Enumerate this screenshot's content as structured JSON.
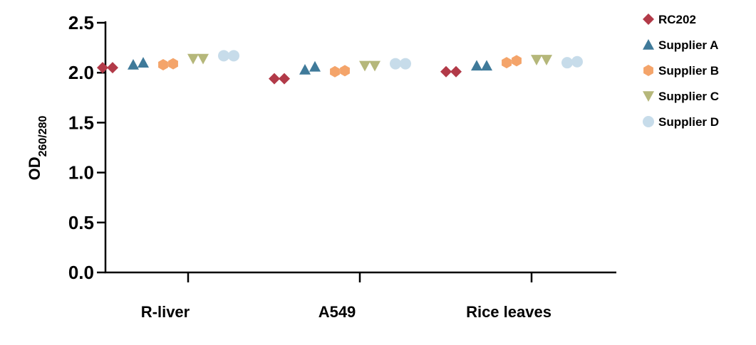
{
  "chart_data": {
    "type": "scatter",
    "ylabel": "OD",
    "ylabel_subscript": "260/280",
    "ylim": [
      0,
      2.5
    ],
    "yticks": [
      "0.0",
      "0.5",
      "1.0",
      "1.5",
      "2.0",
      "2.5"
    ],
    "ytick_values": [
      0,
      0.5,
      1.0,
      1.5,
      2.0,
      2.5
    ],
    "categories": [
      "R-liver",
      "A549",
      "Rice leaves"
    ],
    "legend_position": "right",
    "series": [
      {
        "name": "RC202",
        "marker": "diamond",
        "color": "#b23a48",
        "values": [
          [
            2.05,
            2.05
          ],
          [
            1.94,
            1.94
          ],
          [
            2.01,
            2.01
          ]
        ]
      },
      {
        "name": "Supplier A",
        "marker": "triangle-up",
        "color": "#3f7a9a",
        "values": [
          [
            2.08,
            2.1
          ],
          [
            2.03,
            2.06
          ],
          [
            2.07,
            2.07
          ]
        ]
      },
      {
        "name": "Supplier B",
        "marker": "hexagon",
        "color": "#f4a46a",
        "values": [
          [
            2.08,
            2.09
          ],
          [
            2.01,
            2.02
          ],
          [
            2.1,
            2.12
          ]
        ]
      },
      {
        "name": "Supplier C",
        "marker": "triangle-down",
        "color": "#b5b77a",
        "values": [
          [
            2.14,
            2.14
          ],
          [
            2.07,
            2.07
          ],
          [
            2.13,
            2.13
          ]
        ]
      },
      {
        "name": "Supplier D",
        "marker": "circle",
        "color": "#c7dcea",
        "values": [
          [
            2.17,
            2.17
          ],
          [
            2.09,
            2.09
          ],
          [
            2.1,
            2.11
          ]
        ]
      }
    ]
  }
}
